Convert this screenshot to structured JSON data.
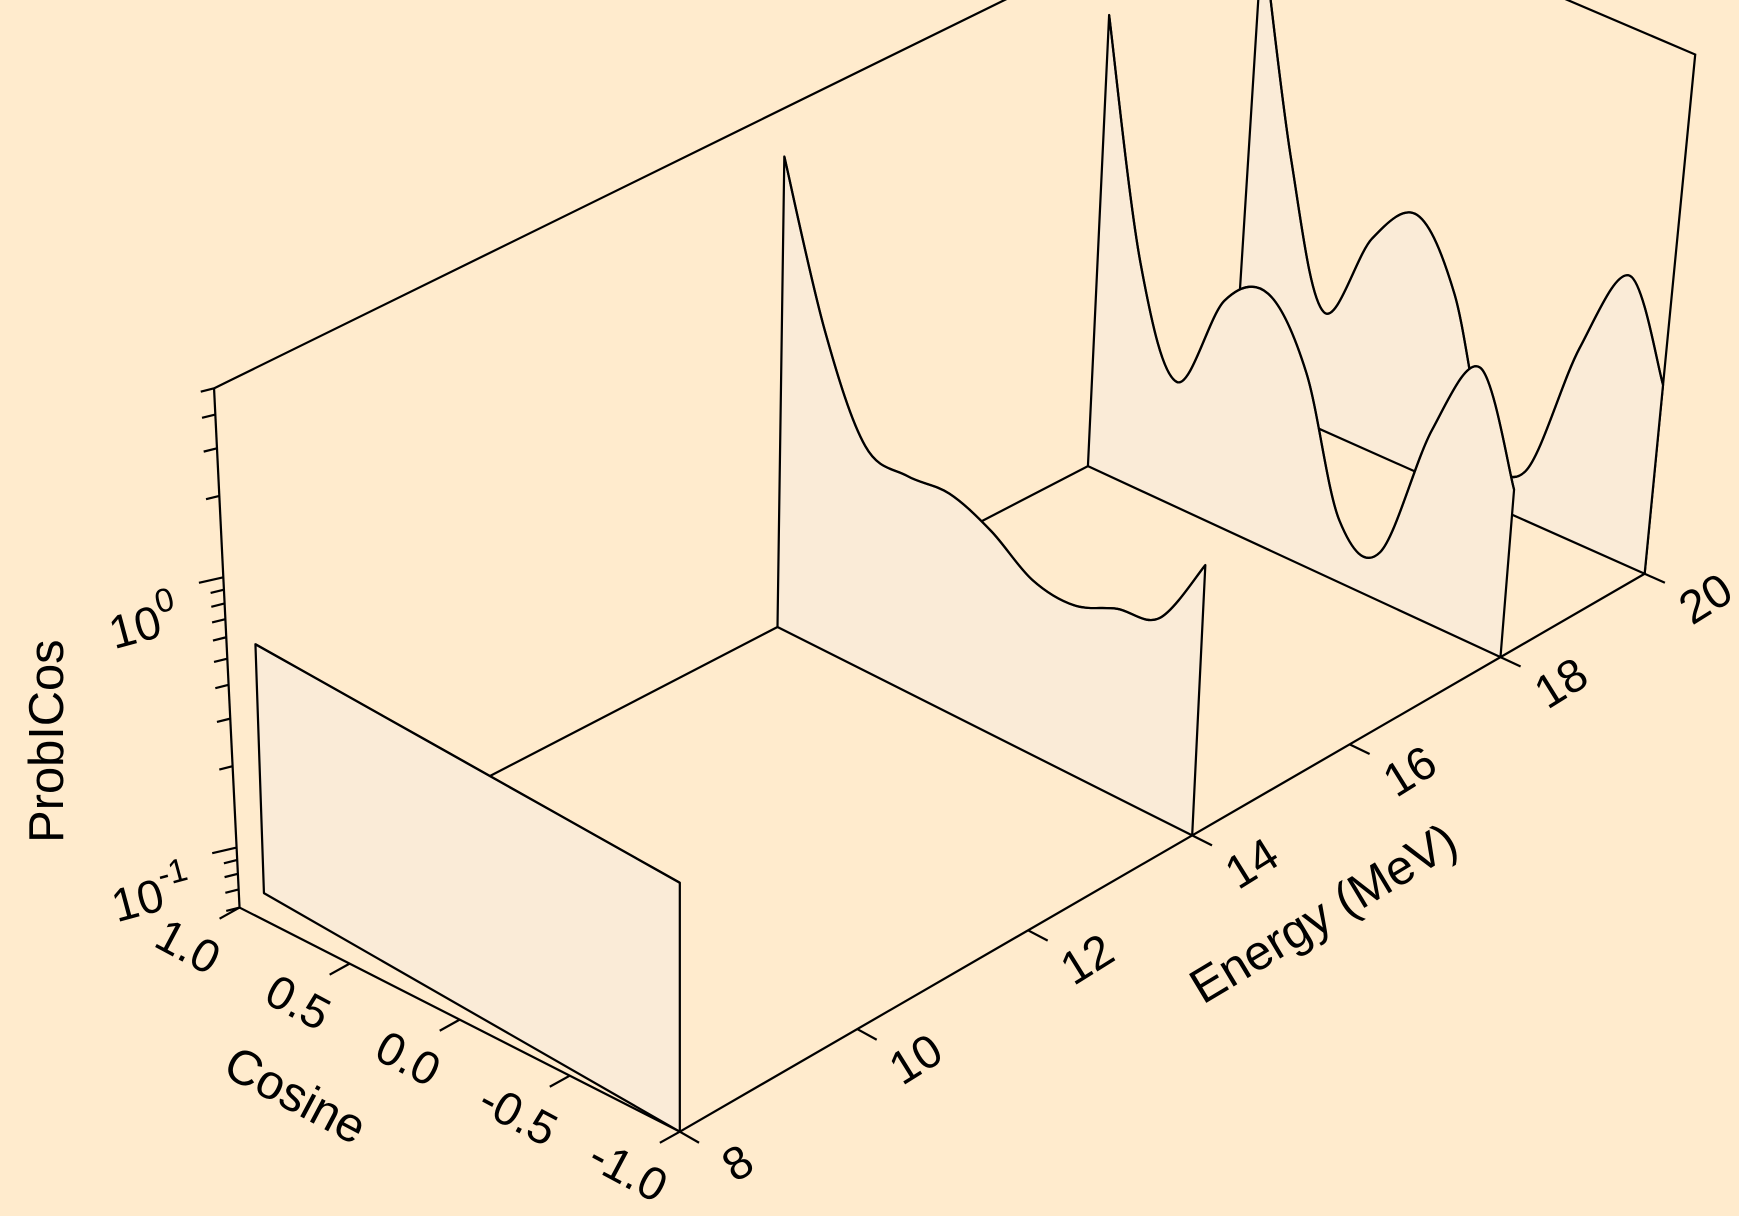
{
  "chart_data": {
    "type": "waterfall3d",
    "x_label": "Energy (MeV)",
    "y_label": "Cosine",
    "z_label": "ProbICos",
    "xlim": [
      8,
      20
    ],
    "xticks": [
      8,
      10,
      12,
      14,
      16,
      18,
      20
    ],
    "ylim": [
      1,
      -1
    ],
    "yticks": [
      {
        "value": 1,
        "label": "1.0"
      },
      0.5,
      {
        "value": 0,
        "label": "0.0"
      },
      -0.5,
      {
        "value": -1,
        "label": "-1.0"
      }
    ],
    "zlim": [
      0.06,
      5
    ],
    "zscale": "log",
    "zticks": [
      {
        "value": 0.1,
        "label": "10",
        "exponent": "-1"
      },
      {
        "value": 1,
        "label": "10",
        "exponent": "0"
      }
    ],
    "zminorticks": [
      0.06,
      0.07,
      0.08,
      0.09,
      0.2,
      0.3,
      0.4,
      0.5,
      0.6,
      0.7,
      0.8,
      0.9,
      2,
      3,
      4,
      5
    ],
    "cosine": [
      1,
      0.8,
      0.6,
      0.4,
      0.2,
      0,
      -0.2,
      -0.4,
      -0.6,
      -0.8,
      -1
    ],
    "series": [
      {
        "x": 8,
        "values": [
          0.5,
          0.5,
          0.5,
          0.5,
          0.5,
          0.5,
          0.5,
          0.5,
          0.5,
          0.5,
          0.5
        ]
      },
      {
        "x": 14,
        "values": [
          3.3,
          0.9,
          0.4,
          0.37,
          0.38,
          0.33,
          0.26,
          0.25,
          0.29,
          0.32,
          0.6
        ]
      },
      {
        "x": 18,
        "values": [
          2.8,
          0.4,
          0.17,
          0.4,
          0.5,
          0.3,
          0.1,
          0.09,
          0.3,
          0.6,
          0.25
        ]
      },
      {
        "x": 20,
        "values": [
          3.0,
          0.5,
          0.16,
          0.35,
          0.5,
          0.3,
          0.1,
          0.09,
          0.3,
          0.65,
          0.3
        ]
      }
    ],
    "color": "#faebd7",
    "line_color": "#000000",
    "background": "#ffebcd"
  }
}
